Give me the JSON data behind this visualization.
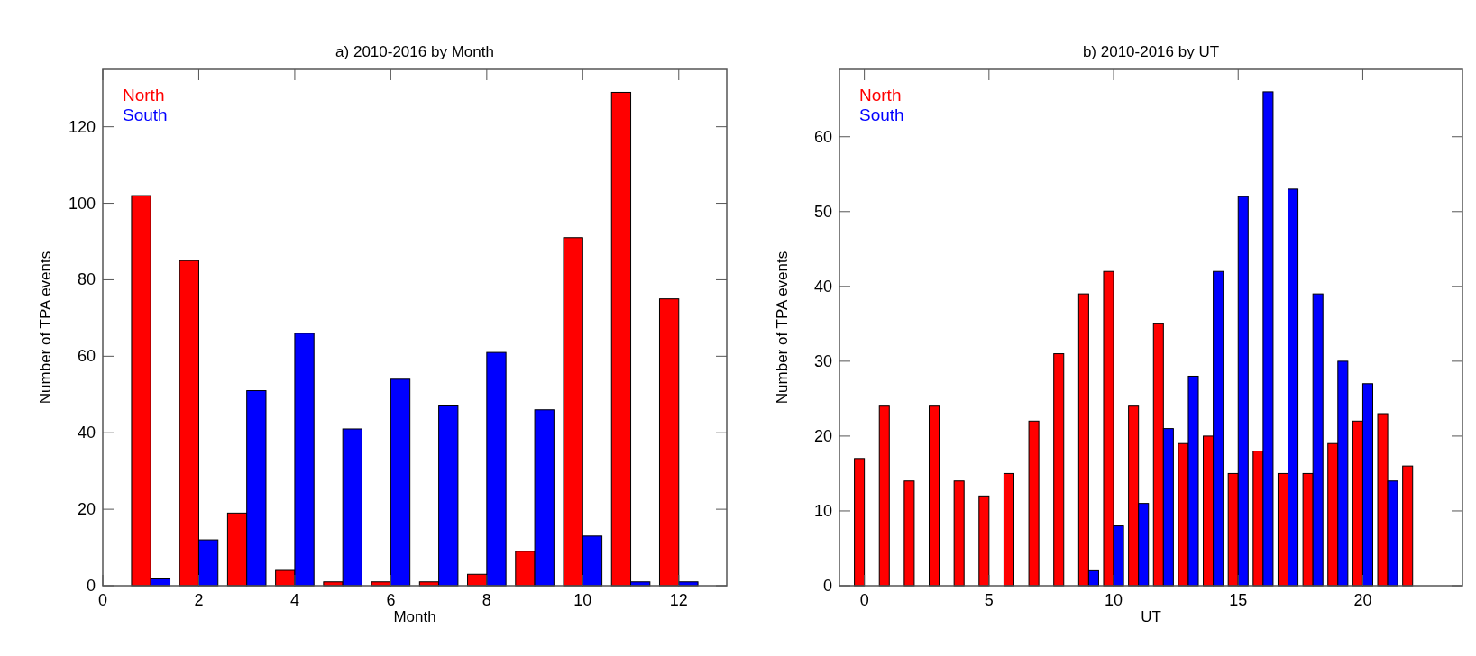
{
  "chart_data": [
    {
      "type": "bar",
      "title": "a) 2010-2016 by Month",
      "xlabel": "Month",
      "ylabel": "Number of TPA events",
      "x": [
        1,
        2,
        3,
        4,
        5,
        6,
        7,
        8,
        9,
        10,
        11,
        12
      ],
      "series": [
        {
          "name": "North",
          "color": "#ff0000",
          "values": [
            102,
            85,
            19,
            4,
            1,
            1,
            1,
            3,
            9,
            91,
            129,
            75
          ]
        },
        {
          "name": "South",
          "color": "#0000ff",
          "values": [
            2,
            12,
            51,
            66,
            41,
            54,
            47,
            61,
            46,
            13,
            1,
            1
          ]
        }
      ],
      "xlim": [
        0,
        13
      ],
      "xticks": [
        0,
        2,
        4,
        6,
        8,
        10,
        12
      ],
      "ylim": [
        0,
        135
      ],
      "yticks": [
        0,
        20,
        40,
        60,
        80,
        100,
        120
      ],
      "legend": "top left",
      "grid": false
    },
    {
      "type": "bar",
      "title": "b) 2010-2016 by UT",
      "xlabel": "UT",
      "ylabel": "Number of TPA events",
      "x": [
        0,
        1,
        2,
        3,
        4,
        5,
        6,
        7,
        8,
        9,
        10,
        11,
        12,
        13,
        14,
        15,
        16,
        17,
        18,
        19,
        20,
        21,
        22
      ],
      "series": [
        {
          "name": "North",
          "color": "#ff0000",
          "values": [
            17,
            24,
            14,
            24,
            14,
            12,
            15,
            22,
            31,
            39,
            42,
            24,
            35,
            19,
            20,
            15,
            18,
            15,
            15,
            19,
            22,
            23,
            16
          ]
        },
        {
          "name": "South",
          "color": "#0000ff",
          "values": [
            null,
            null,
            null,
            null,
            null,
            null,
            null,
            null,
            null,
            2,
            8,
            11,
            21,
            28,
            42,
            52,
            66,
            53,
            39,
            30,
            27,
            14,
            null
          ]
        }
      ],
      "xlim": [
        -1,
        24
      ],
      "xticks": [
        0,
        5,
        10,
        15,
        20
      ],
      "ylim": [
        0,
        69
      ],
      "yticks": [
        0,
        10,
        20,
        30,
        40,
        50,
        60
      ],
      "legend": "top left",
      "grid": false
    }
  ]
}
